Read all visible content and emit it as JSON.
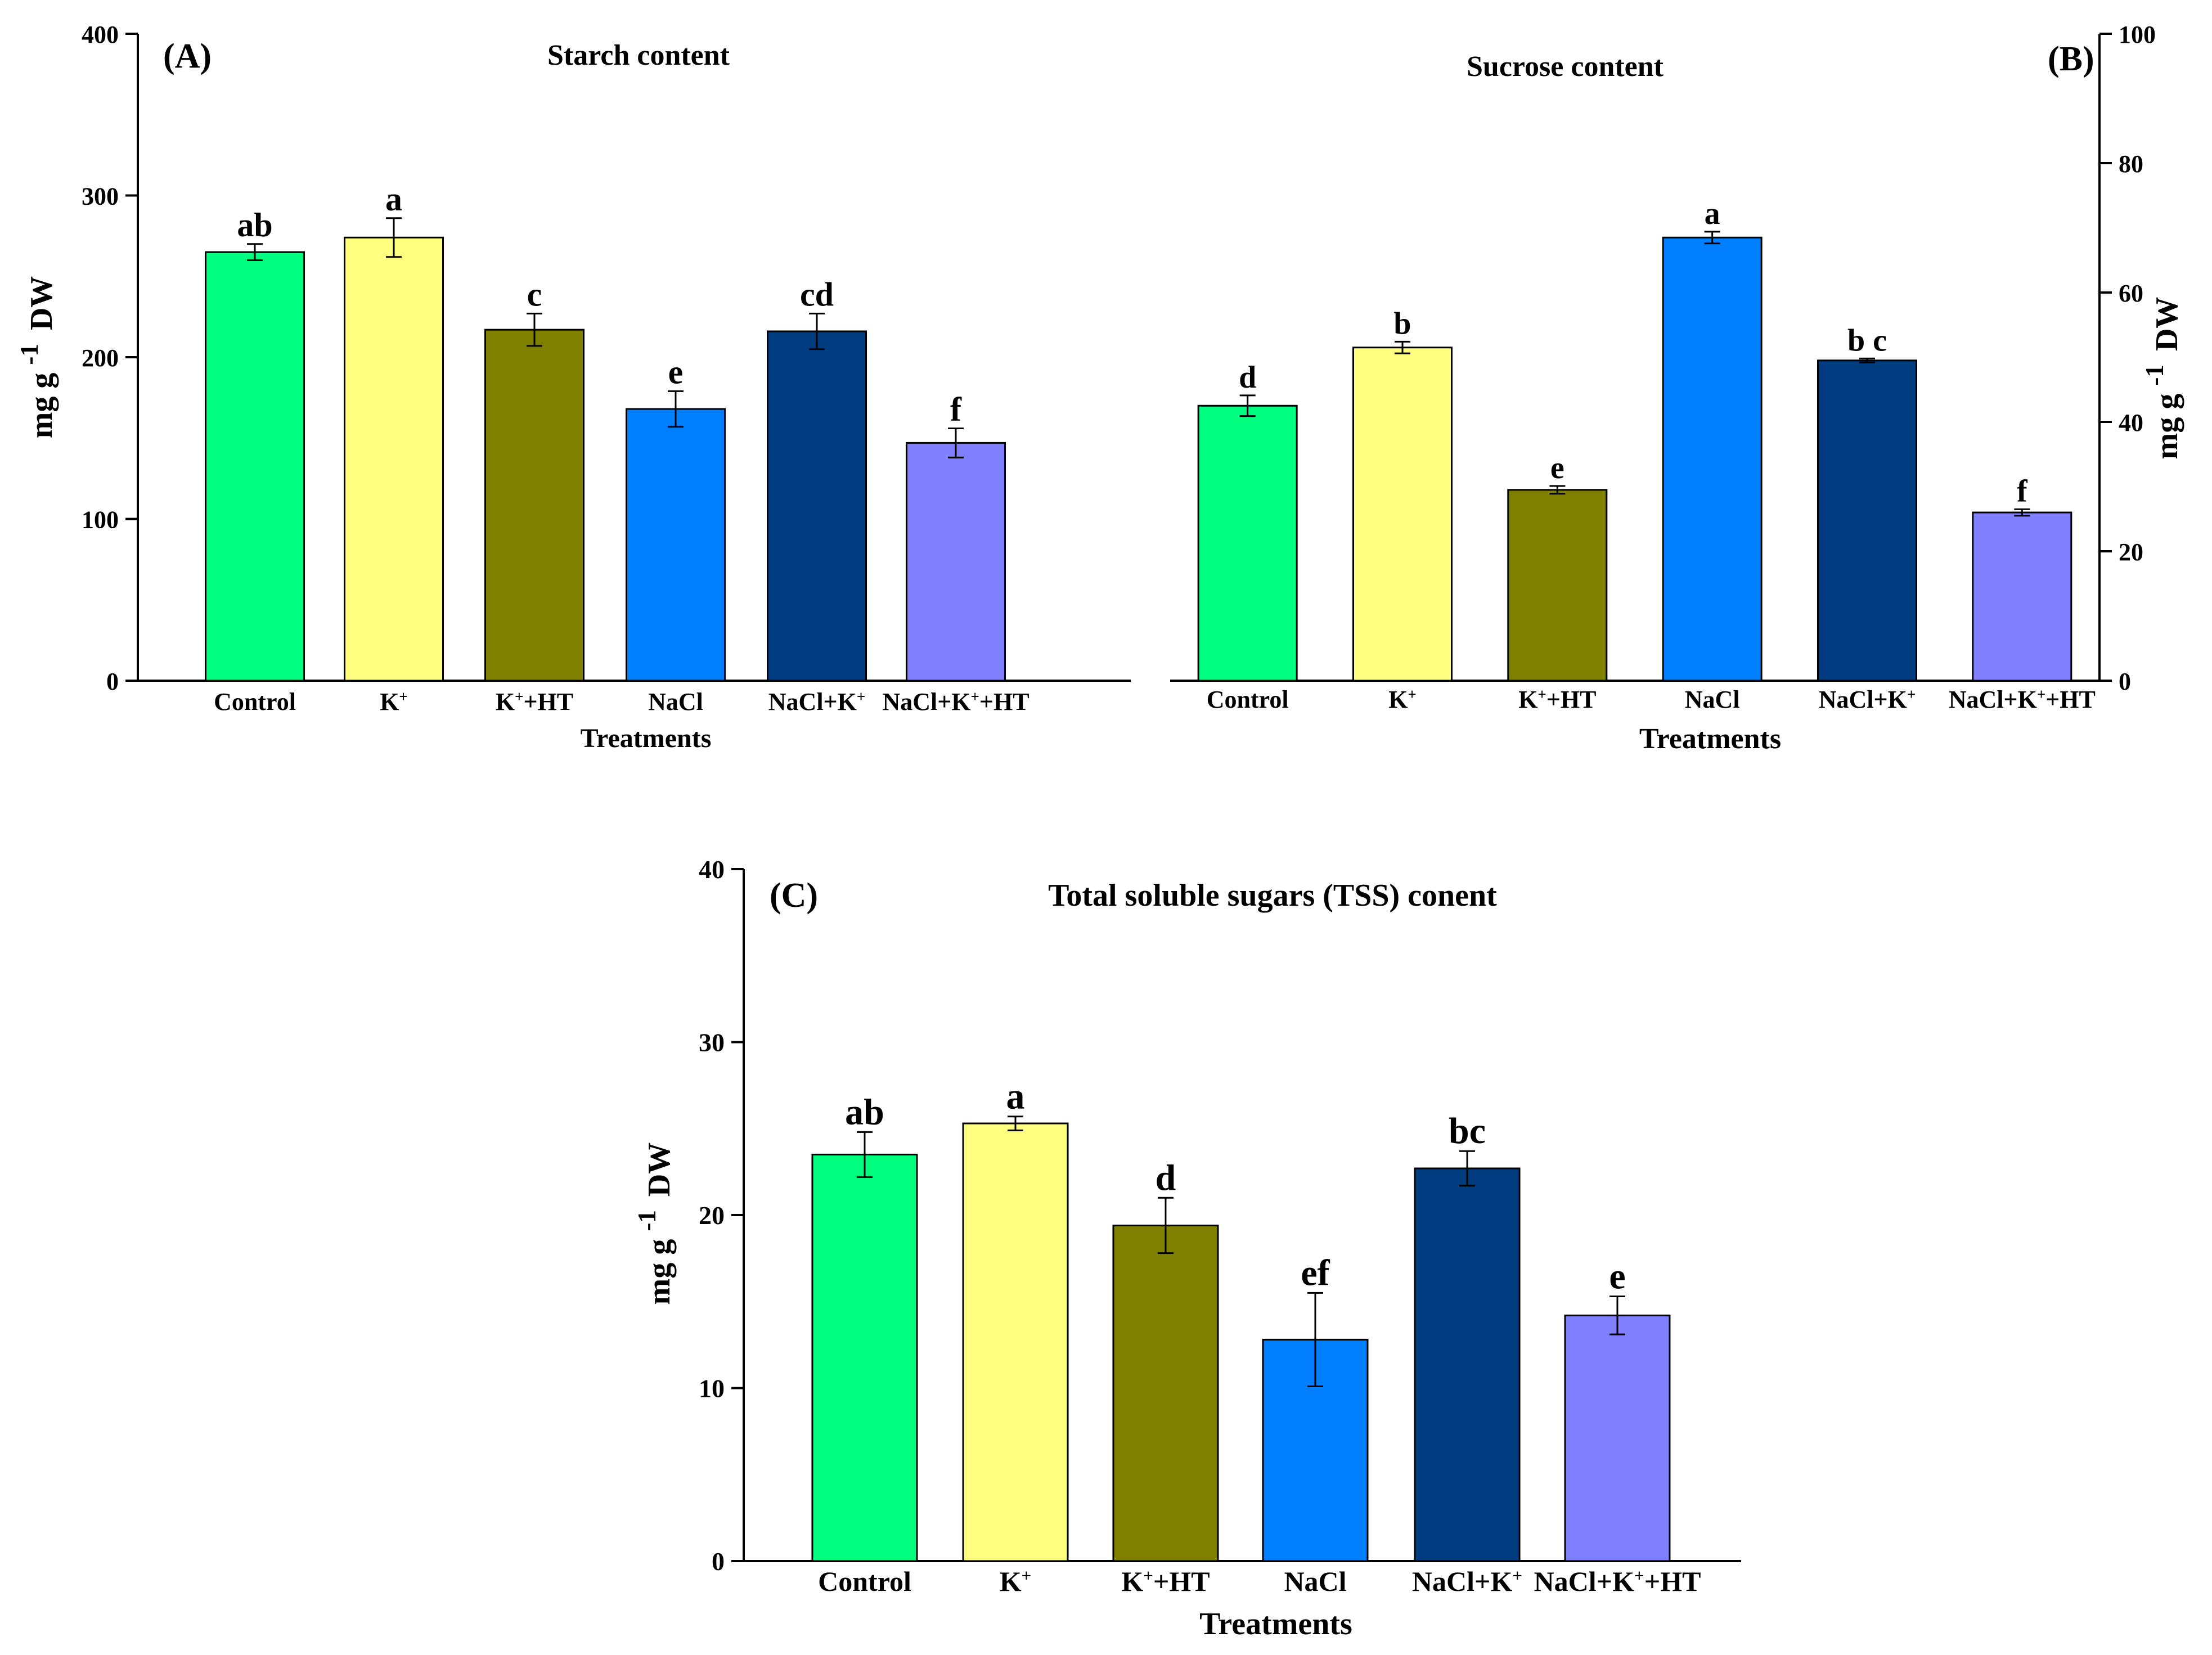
{
  "chart_data": [
    {
      "panel": "(A)",
      "type": "bar",
      "title": "Starch content",
      "xlabel": "Treatments",
      "ylabel": "mg g",
      "ylabel_sup": "-1",
      "ylabel_unit": "DW",
      "ylim": [
        0,
        400
      ],
      "yticks": [
        0,
        100,
        200,
        300,
        400
      ],
      "y_axis_side": "left",
      "categories": [
        {
          "base": "Control",
          "sup": ""
        },
        {
          "base": "K",
          "sup": "+"
        },
        {
          "base": "K",
          "sup": "+",
          "suffix": "+HT"
        },
        {
          "base": "NaCl",
          "sup": ""
        },
        {
          "base": "NaCl+K",
          "sup": "+"
        },
        {
          "base": "NaCl+K",
          "sup": "+",
          "suffix": "+HT"
        }
      ],
      "values": [
        265,
        274,
        217,
        168,
        216,
        147
      ],
      "errors": [
        5,
        12,
        10,
        11,
        11,
        9
      ],
      "letters": [
        "ab",
        "a",
        "c",
        "e",
        "cd",
        "f"
      ]
    },
    {
      "panel": "(B)",
      "type": "bar",
      "title": "Sucrose content",
      "xlabel": "Treatments",
      "ylabel": "mg g",
      "ylabel_sup": "-1",
      "ylabel_unit": "DW",
      "ylim": [
        0,
        100
      ],
      "yticks": [
        0,
        20,
        40,
        60,
        80,
        100
      ],
      "y_axis_side": "right",
      "categories": [
        {
          "base": "Control",
          "sup": ""
        },
        {
          "base": "K",
          "sup": "+"
        },
        {
          "base": "K",
          "sup": "+",
          "suffix": "+HT"
        },
        {
          "base": "NaCl",
          "sup": ""
        },
        {
          "base": "NaCl+K",
          "sup": "+"
        },
        {
          "base": "NaCl+K",
          "sup": "+",
          "suffix": "+HT"
        }
      ],
      "values": [
        42.5,
        51.5,
        29.5,
        68.5,
        49.5,
        26
      ],
      "errors": [
        1.6,
        0.9,
        0.6,
        0.9,
        0.3,
        0.5
      ],
      "letters": [
        "d",
        "b",
        "e",
        "a",
        "b c",
        "f"
      ]
    },
    {
      "panel": "(C)",
      "type": "bar",
      "title": "Total soluble sugars (TSS) conent",
      "xlabel": "Treatments",
      "ylabel": "mg g",
      "ylabel_sup": "-1",
      "ylabel_unit": "DW",
      "ylim": [
        0,
        40
      ],
      "yticks": [
        0,
        10,
        20,
        30,
        40
      ],
      "y_axis_side": "left",
      "categories": [
        {
          "base": "Control",
          "sup": ""
        },
        {
          "base": "K",
          "sup": "+"
        },
        {
          "base": "K",
          "sup": "+",
          "suffix": "+HT"
        },
        {
          "base": "NaCl",
          "sup": ""
        },
        {
          "base": "NaCl+K",
          "sup": "+"
        },
        {
          "base": "NaCl+K",
          "sup": "+",
          "suffix": "+HT"
        }
      ],
      "values": [
        23.5,
        25.3,
        19.4,
        12.8,
        22.7,
        14.2
      ],
      "errors": [
        1.3,
        0.4,
        1.6,
        2.7,
        1.0,
        1.1
      ],
      "letters": [
        "ab",
        "a",
        "d",
        "ef",
        "bc",
        "e"
      ]
    }
  ],
  "colors": {
    "bars": [
      "#00ff7f",
      "#ffff80",
      "#808000",
      "#0080ff",
      "#003c80",
      "#8080ff"
    ],
    "axis": "#000000"
  }
}
